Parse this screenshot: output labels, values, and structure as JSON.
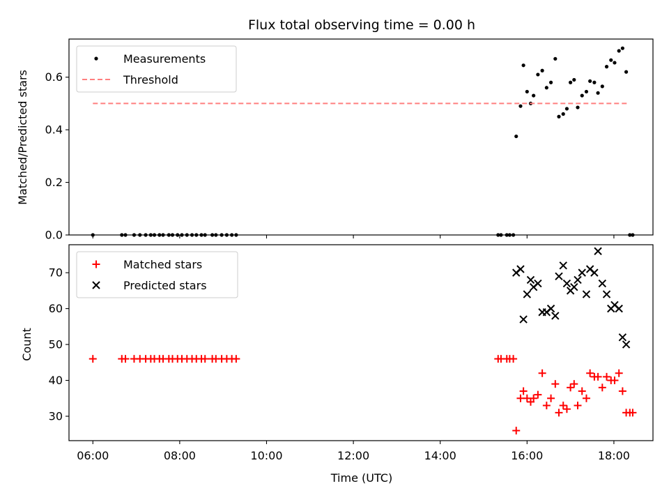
{
  "chart_data": [
    {
      "type": "scatter",
      "title": "Flux total observing time = 0.00 h",
      "xlabel": "",
      "ylabel": "Matched/Predicted stars",
      "xlim": [
        "05:27",
        "18:54"
      ],
      "ylim": [
        0.0,
        0.745
      ],
      "yticks": [
        0.0,
        0.2,
        0.4,
        0.6
      ],
      "ytick_labels": [
        "0.0",
        "0.2",
        "0.4",
        "0.6"
      ],
      "legend_position": "top-left",
      "series": [
        {
          "name": "Measurements",
          "marker": "dot",
          "color": "#000000",
          "points": [
            [
              "06:00",
              0.0
            ],
            [
              "06:40",
              0.0
            ],
            [
              "06:45",
              0.0
            ],
            [
              "06:57",
              0.0
            ],
            [
              "07:05",
              0.0
            ],
            [
              "07:13",
              0.0
            ],
            [
              "07:20",
              0.0
            ],
            [
              "07:25",
              0.0
            ],
            [
              "07:32",
              0.0
            ],
            [
              "07:37",
              0.0
            ],
            [
              "07:45",
              0.0
            ],
            [
              "07:50",
              0.0
            ],
            [
              "07:57",
              0.0
            ],
            [
              "08:03",
              0.0
            ],
            [
              "08:10",
              0.0
            ],
            [
              "08:17",
              0.0
            ],
            [
              "08:23",
              0.0
            ],
            [
              "08:30",
              0.0
            ],
            [
              "08:35",
              0.0
            ],
            [
              "08:45",
              0.0
            ],
            [
              "08:50",
              0.0
            ],
            [
              "08:58",
              0.0
            ],
            [
              "09:05",
              0.0
            ],
            [
              "09:12",
              0.0
            ],
            [
              "09:18",
              0.0
            ],
            [
              "15:20",
              0.0
            ],
            [
              "15:24",
              0.0
            ],
            [
              "15:32",
              0.0
            ],
            [
              "15:36",
              0.0
            ],
            [
              "15:41",
              0.0
            ],
            [
              "15:45",
              0.375
            ],
            [
              "15:51",
              0.49
            ],
            [
              "15:55",
              0.645
            ],
            [
              "16:00",
              0.545
            ],
            [
              "16:05",
              0.5
            ],
            [
              "16:09",
              0.53
            ],
            [
              "16:15",
              0.61
            ],
            [
              "16:21",
              0.625
            ],
            [
              "16:27",
              0.56
            ],
            [
              "16:33",
              0.58
            ],
            [
              "16:39",
              0.67
            ],
            [
              "16:44",
              0.45
            ],
            [
              "16:50",
              0.46
            ],
            [
              "16:55",
              0.48
            ],
            [
              "17:00",
              0.58
            ],
            [
              "17:05",
              0.59
            ],
            [
              "17:10",
              0.485
            ],
            [
              "17:16",
              0.53
            ],
            [
              "17:22",
              0.545
            ],
            [
              "17:27",
              0.585
            ],
            [
              "17:33",
              0.58
            ],
            [
              "17:38",
              0.54
            ],
            [
              "17:44",
              0.565
            ],
            [
              "17:50",
              0.64
            ],
            [
              "17:56",
              0.665
            ],
            [
              "18:01",
              0.655
            ],
            [
              "18:07",
              0.7
            ],
            [
              "18:12",
              0.71
            ],
            [
              "18:17",
              0.62
            ],
            [
              "18:22",
              0.0
            ],
            [
              "18:26",
              0.0
            ]
          ]
        },
        {
          "name": "Threshold",
          "style": "dashed-line",
          "color": "#ff7f7f",
          "points": [
            [
              "06:00",
              0.5
            ],
            [
              "18:20",
              0.5
            ]
          ]
        }
      ]
    },
    {
      "type": "scatter",
      "xlabel": "Time (UTC)",
      "ylabel": "Count",
      "xlim": [
        "05:27",
        "18:54"
      ],
      "ylim": [
        23.2,
        77.8
      ],
      "xticks": [
        "06:00",
        "08:00",
        "10:00",
        "12:00",
        "14:00",
        "16:00",
        "18:00"
      ],
      "yticks": [
        30,
        40,
        50,
        60,
        70
      ],
      "ytick_labels": [
        "30",
        "40",
        "50",
        "60",
        "70"
      ],
      "legend_position": "top-left",
      "series": [
        {
          "name": "Matched stars",
          "marker": "plus",
          "color": "#ff0000",
          "points": [
            [
              "06:00",
              46
            ],
            [
              "06:40",
              46
            ],
            [
              "06:45",
              46
            ],
            [
              "06:57",
              46
            ],
            [
              "07:05",
              46
            ],
            [
              "07:13",
              46
            ],
            [
              "07:20",
              46
            ],
            [
              "07:25",
              46
            ],
            [
              "07:32",
              46
            ],
            [
              "07:37",
              46
            ],
            [
              "07:45",
              46
            ],
            [
              "07:50",
              46
            ],
            [
              "07:57",
              46
            ],
            [
              "08:03",
              46
            ],
            [
              "08:10",
              46
            ],
            [
              "08:17",
              46
            ],
            [
              "08:23",
              46
            ],
            [
              "08:30",
              46
            ],
            [
              "08:35",
              46
            ],
            [
              "08:45",
              46
            ],
            [
              "08:50",
              46
            ],
            [
              "08:58",
              46
            ],
            [
              "09:05",
              46
            ],
            [
              "09:12",
              46
            ],
            [
              "09:18",
              46
            ],
            [
              "15:20",
              46
            ],
            [
              "15:24",
              46
            ],
            [
              "15:32",
              46
            ],
            [
              "15:36",
              46
            ],
            [
              "15:41",
              46
            ],
            [
              "15:45",
              26
            ],
            [
              "15:51",
              35
            ],
            [
              "15:55",
              37
            ],
            [
              "16:00",
              35
            ],
            [
              "16:05",
              34
            ],
            [
              "16:09",
              35
            ],
            [
              "16:15",
              36
            ],
            [
              "16:21",
              42
            ],
            [
              "16:27",
              33
            ],
            [
              "16:33",
              35
            ],
            [
              "16:39",
              39
            ],
            [
              "16:44",
              31
            ],
            [
              "16:50",
              33
            ],
            [
              "16:55",
              32
            ],
            [
              "17:00",
              38
            ],
            [
              "17:05",
              39
            ],
            [
              "17:10",
              33
            ],
            [
              "17:16",
              37
            ],
            [
              "17:22",
              35
            ],
            [
              "17:27",
              42
            ],
            [
              "17:33",
              41
            ],
            [
              "17:38",
              41
            ],
            [
              "17:44",
              38
            ],
            [
              "17:50",
              41
            ],
            [
              "17:56",
              40
            ],
            [
              "18:01",
              40
            ],
            [
              "18:07",
              42
            ],
            [
              "18:12",
              37
            ],
            [
              "18:17",
              31
            ],
            [
              "18:22",
              31
            ],
            [
              "18:26",
              31
            ]
          ]
        },
        {
          "name": "Predicted stars",
          "marker": "x",
          "color": "#000000",
          "points": [
            [
              "15:45",
              70
            ],
            [
              "15:51",
              71
            ],
            [
              "15:55",
              57
            ],
            [
              "16:00",
              64
            ],
            [
              "16:05",
              68
            ],
            [
              "16:09",
              66
            ],
            [
              "16:15",
              67
            ],
            [
              "16:21",
              59
            ],
            [
              "16:27",
              59
            ],
            [
              "16:33",
              60
            ],
            [
              "16:39",
              58
            ],
            [
              "16:44",
              69
            ],
            [
              "16:50",
              72
            ],
            [
              "16:55",
              67
            ],
            [
              "17:00",
              65
            ],
            [
              "17:05",
              66
            ],
            [
              "17:10",
              68
            ],
            [
              "17:16",
              70
            ],
            [
              "17:22",
              64
            ],
            [
              "17:27",
              71
            ],
            [
              "17:33",
              70
            ],
            [
              "17:38",
              76
            ],
            [
              "17:44",
              67
            ],
            [
              "17:50",
              64
            ],
            [
              "17:56",
              60
            ],
            [
              "18:01",
              61
            ],
            [
              "18:07",
              60
            ],
            [
              "18:12",
              52
            ],
            [
              "18:17",
              50
            ]
          ]
        }
      ]
    }
  ]
}
